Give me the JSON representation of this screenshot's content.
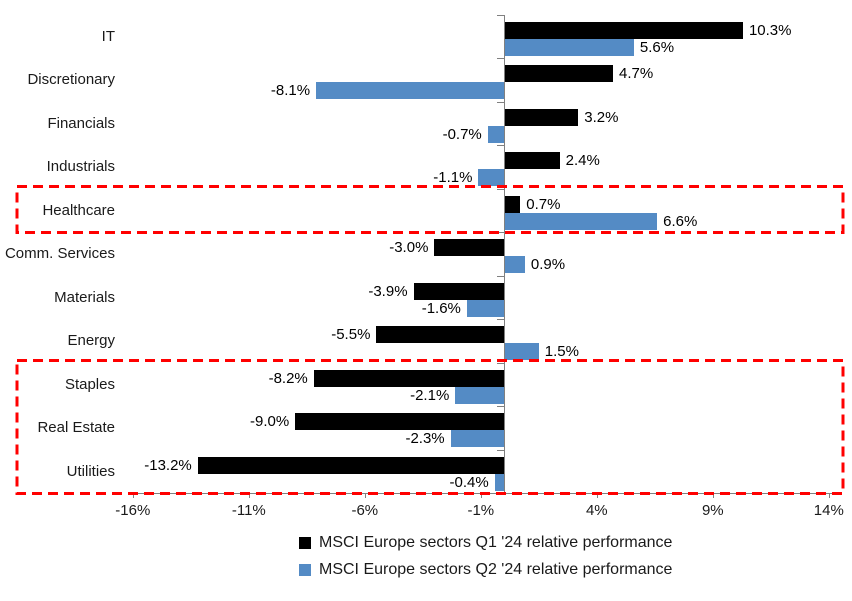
{
  "chart_data": {
    "type": "bar",
    "orientation": "horizontal",
    "categories": [
      "IT",
      "Discretionary",
      "Financials",
      "Industrials",
      "Healthcare",
      "Comm. Services",
      "Materials",
      "Energy",
      "Staples",
      "Real Estate",
      "Utilities"
    ],
    "series": [
      {
        "name": "MSCI Europe sectors Q1 '24 relative performance",
        "color": "#000000",
        "values": [
          10.3,
          4.7,
          3.2,
          2.4,
          0.7,
          -3.0,
          -3.9,
          -5.5,
          -8.2,
          -9.0,
          -13.2
        ],
        "labels": [
          "10.3%",
          "4.7%",
          "3.2%",
          "2.4%",
          "0.7%",
          "-3.0%",
          "-3.9%",
          "-5.5%",
          "-8.2%",
          "-9.0%",
          "-13.2%"
        ]
      },
      {
        "name": "MSCI Europe sectors Q2 '24 relative performance",
        "color": "#548BC5",
        "values": [
          5.6,
          -8.1,
          -0.7,
          -1.1,
          6.6,
          0.9,
          -1.6,
          1.5,
          -2.1,
          -2.3,
          -0.4
        ],
        "labels": [
          "5.6%",
          "-8.1%",
          "-0.7%",
          "-1.1%",
          "6.6%",
          "0.9%",
          "-1.6%",
          "1.5%",
          "-2.1%",
          "-2.3%",
          "-0.4%"
        ]
      }
    ],
    "x_axis": {
      "min": -16,
      "max": 14,
      "ticks": [
        {
          "label": "-16%",
          "value": -16
        },
        {
          "label": "-11%",
          "value": -11
        },
        {
          "label": "-6%",
          "value": -6
        },
        {
          "label": "-1%",
          "value": -1
        },
        {
          "label": "4%",
          "value": 4
        },
        {
          "label": "9%",
          "value": 9
        },
        {
          "label": "14%",
          "value": 14
        }
      ]
    },
    "grid": false,
    "legend_position": "bottom",
    "axis_color": "#808080",
    "highlights": [
      {
        "categories": [
          "Healthcare"
        ],
        "color": "#FF0000"
      },
      {
        "categories": [
          "Staples",
          "Real Estate",
          "Utilities"
        ],
        "color": "#FF0000"
      }
    ]
  }
}
